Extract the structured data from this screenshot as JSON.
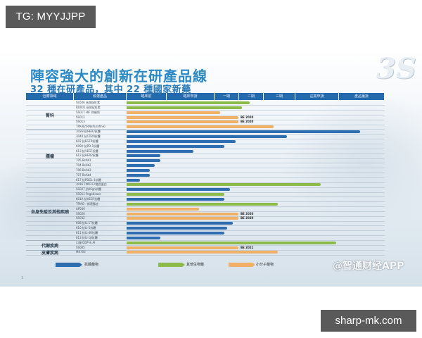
{
  "overlay": {
    "tg_label": "TG: MYYJJPP",
    "site_label": "sharp-mk.com",
    "watermark": "@智通财经APP"
  },
  "slide": {
    "title": "陣容強大的創新在研產品線",
    "subtitle": "32 種在研產品，其中 22 種國家新藥",
    "logo": "3S",
    "page_number": "1"
  },
  "colors": {
    "header": "#2569ad",
    "antibody": "#2e6eb0",
    "other_biologic": "#8dbb4a",
    "small_molecule": "#f0b066",
    "title": "#2b8ac6"
  },
  "chart_data": {
    "type": "bar",
    "orientation": "horizontal",
    "title": "陣容強大的創新在研產品線",
    "subtitle": "32 種在研產品，其中 22 種國家新藥",
    "columns": [
      "治療領域",
      "候選產品",
      "臨床前",
      "臨床申請",
      "一期",
      "二期",
      "三期",
      "註冊申請",
      "產品獲批"
    ],
    "stages": [
      "臨床前",
      "臨床申請",
      "一期",
      "二期",
      "三期",
      "註冊申請",
      "產品獲批"
    ],
    "legend": [
      {
        "name": "抗體藥物",
        "color": "#2e6eb0"
      },
      {
        "name": "其他生物藥",
        "color": "#8dbb4a"
      },
      {
        "name": "小分子藥物",
        "color": "#f0b066"
      }
    ],
    "groups": [
      {
        "name": "腎科",
        "rows": [
          0,
          5
        ]
      },
      {
        "name": "腫瘤",
        "rows": [
          6,
          16
        ]
      },
      {
        "name": "自身免疫及其他疾病",
        "rows": [
          17,
          28
        ]
      },
      {
        "name": "代謝疾病",
        "rows": [
          29,
          30
        ]
      },
      {
        "name": "皮膚疾病",
        "rows": [
          31,
          31
        ]
      }
    ],
    "products": [
      {
        "name": "SS506 長效促紅素",
        "type": "其他生物藥",
        "stage_progress": 2.8,
        "note": ""
      },
      {
        "name": "RD001 長效促紅素",
        "type": "其他生物藥",
        "stage_progress": 2.6,
        "note": ""
      },
      {
        "name": "SS017 HIF 抑制劑",
        "type": "小分子藥物",
        "stage_progress": 2.1,
        "note": ""
      },
      {
        "name": "SS012",
        "type": "小分子藥物",
        "stage_progress": 2.55,
        "note": "BE 2020"
      },
      {
        "name": "SS013",
        "type": "小分子藥物",
        "stage_progress": 2.55,
        "note": "BE 2020"
      },
      {
        "name": "TRK-820(Nalfurafine)",
        "type": "小分子藥物",
        "stage_progress": 3.7,
        "note": ""
      },
      {
        "name": "302H 抗HER2抗體",
        "type": "抗體藥物",
        "stage_progress": 6.5,
        "note": ""
      },
      {
        "name": "304R 抗CD20抗體",
        "type": "抗體藥物",
        "stage_progress": 4.1,
        "note": ""
      },
      {
        "name": "602 抗EGFR抗體",
        "type": "抗體藥物",
        "stage_progress": 2.5,
        "note": ""
      },
      {
        "name": "609A 抗PD-1抗體",
        "type": "抗體藥物",
        "stage_progress": 2.3,
        "note": ""
      },
      {
        "name": "613 抗VEGF抗體",
        "type": "抗體藥物",
        "stage_progress": 1.5,
        "note": ""
      },
      {
        "name": "612 抗HER2抗體",
        "type": "抗體藥物",
        "stage_progress": 0.85,
        "note": ""
      },
      {
        "name": "705 BsAb1",
        "type": "抗體藥物",
        "stage_progress": 0.85,
        "note": ""
      },
      {
        "name": "704 BsAb2",
        "type": "抗體藥物",
        "stage_progress": 0.7,
        "note": ""
      },
      {
        "name": "706 BsAb3",
        "type": "抗體藥物",
        "stage_progress": 0.58,
        "note": ""
      },
      {
        "name": "707 BsAb4",
        "type": "抗體藥物",
        "stage_progress": 0.58,
        "note": ""
      },
      {
        "name": "617 抗PDGL-1抗體",
        "type": "抗體藥物",
        "stage_progress": 0.33,
        "note": ""
      },
      {
        "name": "3016 TNFR-Fc融合蛋白",
        "type": "其他生物藥",
        "stage_progress": 4.8,
        "note": ""
      },
      {
        "name": "SS027 抗Il6gn抗體",
        "type": "抗體藥物",
        "stage_progress": 2.4,
        "note": ""
      },
      {
        "name": "SS011 Pegaticase",
        "type": "其他生物藥",
        "stage_progress": 2.3,
        "note": ""
      },
      {
        "name": "601A 抗VEGF抗體",
        "type": "抗體藥物",
        "stage_progress": 2.3,
        "note": ""
      },
      {
        "name": "TPIAO - 新適應症",
        "type": "其他生物藥",
        "stage_progress": 3.8,
        "note": ""
      },
      {
        "name": "AP506",
        "type": "小分子藥物",
        "stage_progress": 1.8,
        "note": ""
      },
      {
        "name": "SS020",
        "type": "小分子藥物",
        "stage_progress": 2.55,
        "note": "BE 2020"
      },
      {
        "name": "SS032",
        "type": "小分子藥物",
        "stage_progress": 2.55,
        "note": "BE 2020"
      },
      {
        "name": "608 抗IL-17抗體",
        "type": "抗體藥物",
        "stage_progress": 2.45,
        "note": ""
      },
      {
        "name": "610 抗IL-5抗體",
        "type": "抗體藥物",
        "stage_progress": 2.35,
        "note": ""
      },
      {
        "name": "611 抗IL-4R抗體",
        "type": "抗體藥物",
        "stage_progress": 2.3,
        "note": ""
      },
      {
        "name": "613 抗IL-1β抗體",
        "type": "抗體藥物",
        "stage_progress": 0.85,
        "note": ""
      },
      {
        "name": "口服 DDP & AI",
        "type": "其他生物藥",
        "stage_progress": 5.4,
        "note": ""
      },
      {
        "name": "SS005",
        "type": "小分子藥物",
        "stage_progress": 2.55,
        "note": "BE 2021"
      },
      {
        "name": "MK703",
        "type": "小分子藥物",
        "stage_progress": 3.8,
        "note": ""
      }
    ]
  },
  "layout_rows": [
    {
      "end": 355,
      "color": "green"
    },
    {
      "end": 344,
      "color": "green"
    },
    {
      "end": 313,
      "color": "orange"
    },
    {
      "end": 339,
      "color": "orange"
    },
    {
      "end": 339,
      "color": "orange"
    },
    {
      "end": 389,
      "color": "orange"
    },
    {
      "end": 512,
      "color": "blue"
    },
    {
      "end": 408,
      "color": "blue"
    },
    {
      "end": 335,
      "color": "blue"
    },
    {
      "end": 319,
      "color": "blue"
    },
    {
      "end": 275,
      "color": "blue"
    },
    {
      "end": 228,
      "color": "blue"
    },
    {
      "end": 228,
      "color": "blue"
    },
    {
      "end": 220,
      "color": "blue"
    },
    {
      "end": 213,
      "color": "blue"
    },
    {
      "end": 213,
      "color": "blue"
    },
    {
      "end": 199,
      "color": "blue"
    },
    {
      "end": 456,
      "color": "green"
    },
    {
      "end": 327,
      "color": "blue"
    },
    {
      "end": 319,
      "color": "green"
    },
    {
      "end": 319,
      "color": "blue"
    },
    {
      "end": 395,
      "color": "green"
    },
    {
      "end": 283,
      "color": "orange"
    },
    {
      "end": 339,
      "color": "orange"
    },
    {
      "end": 339,
      "color": "orange"
    },
    {
      "end": 331,
      "color": "blue"
    },
    {
      "end": 323,
      "color": "blue"
    },
    {
      "end": 319,
      "color": "blue"
    },
    {
      "end": 228,
      "color": "blue"
    },
    {
      "end": 478,
      "color": "green"
    },
    {
      "end": 339,
      "color": "orange"
    },
    {
      "end": 395,
      "color": "orange"
    }
  ]
}
